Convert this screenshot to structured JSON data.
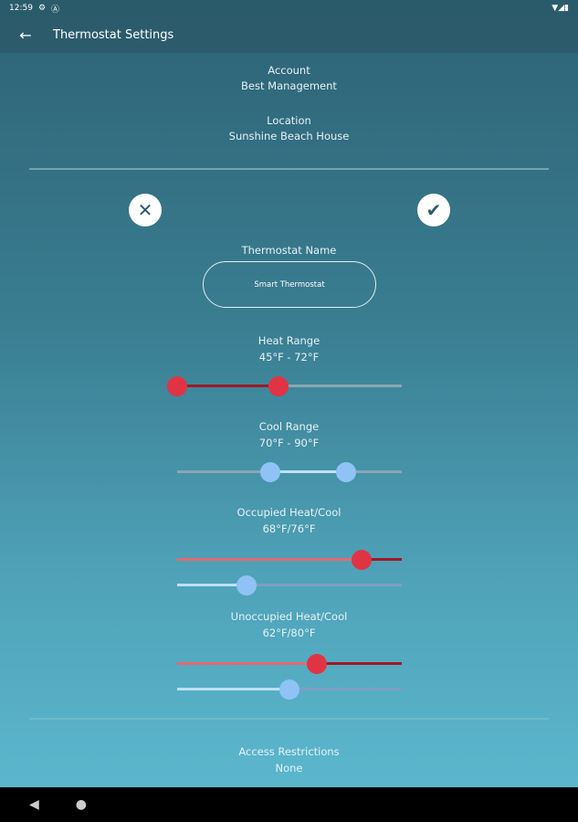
{
  "status_bar": {
    "time": "12:59",
    "icons": [
      "gear-icon",
      "a-icon",
      "wifi-icon",
      "signal-icon",
      "battery-icon"
    ]
  },
  "app_bar": {
    "title": "Thermostat Settings",
    "back_icon": "arrow-back-icon"
  },
  "account": {
    "label": "Account",
    "value": "Best Management"
  },
  "location": {
    "label": "Location",
    "value": "Sunshine Beach House"
  },
  "actions": {
    "cancel_icon": "close-icon",
    "confirm_icon": "check-icon"
  },
  "thermostat_name": {
    "label": "Thermostat Name",
    "value": "Smart Thermostat"
  },
  "heat_range": {
    "label": "Heat Range",
    "value": "45°F - 72°F",
    "low": 0,
    "high": 0.45
  },
  "cool_range": {
    "label": "Cool Range",
    "value": "70°F - 90°F",
    "low": 0.415,
    "high": 0.75
  },
  "occupied": {
    "label": "Occupied Heat/Cool",
    "value": "68°F/76°F",
    "heat": 0.82,
    "cool": 0.31
  },
  "unoccupied": {
    "label": "Unoccupied Heat/Cool",
    "value": "62°F/80°F",
    "heat": 0.62,
    "cool": 0.5
  },
  "access": {
    "label": "Access Restrictions",
    "value": "None"
  },
  "colors": {
    "heat": "#e03444",
    "heat_track": "#e36a72",
    "heat_dark": "#9e1a26",
    "cool": "#8fc3f5",
    "cool_track": "#bfe0fa",
    "inactive": "#8aa6b2",
    "cool_inactive": "#7d9fc4"
  }
}
